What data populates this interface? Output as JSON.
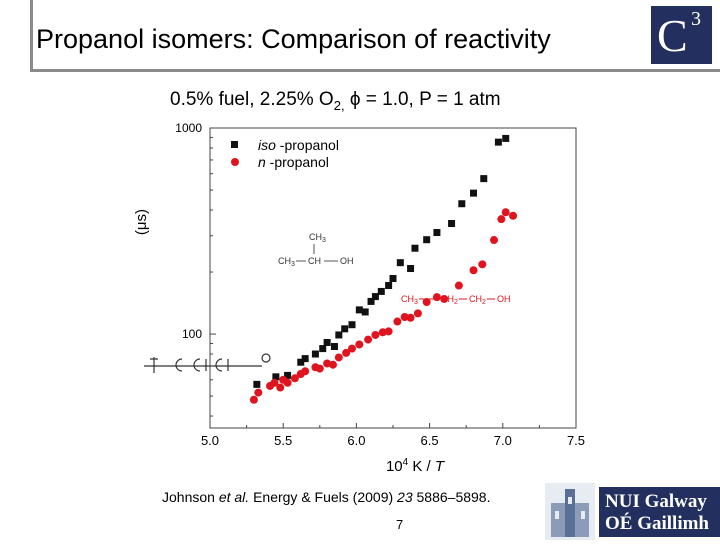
{
  "slide": {
    "title": "Propanol isomers: Comparison of reactivity",
    "subtitle_main": "0.5% fuel, 2.25% O",
    "subtitle_sub": "2,",
    "subtitle_rest": " ϕ = 1.0, P = 1 atm",
    "citation_authors": "Johnson ",
    "citation_etal": "et al.",
    "citation_journal": " Energy & Fuels (2009) ",
    "citation_volume": "23",
    "citation_pages": " 5886–5898.",
    "page_number": "7",
    "logo_c3_letter": "C",
    "logo_c3_sup": "3",
    "nuig_line1": "NUI Galway",
    "nuig_line2": "OÉ Gaillimh"
  },
  "chart_data": {
    "type": "scatter",
    "xlabel_prefix": "10",
    "xlabel_sup": "4",
    "xlabel_rest": " K / ",
    "xlabel_var": "T",
    "ylabel": "(μs)",
    "xlim": [
      5.0,
      7.5
    ],
    "ylim": [
      35,
      1000
    ],
    "yscale": "log",
    "x_ticks": [
      "5.0",
      "5.5",
      "6.0",
      "6.5",
      "7.0",
      "7.5"
    ],
    "y_ticks": [
      "1000",
      "100"
    ],
    "colors": {
      "iso": "#111111",
      "n": "#e0141e"
    },
    "series": [
      {
        "name": "iso-propanol",
        "legend_italic": "iso",
        "legend_rest": " -propanol",
        "marker": "square",
        "x": [
          5.32,
          5.45,
          5.53,
          5.62,
          5.65,
          5.72,
          5.77,
          5.8,
          5.85,
          5.88,
          5.92,
          5.97,
          6.02,
          6.06,
          6.1,
          6.13,
          6.17,
          6.22,
          6.25,
          6.3,
          6.37,
          6.4,
          6.48,
          6.55,
          6.65,
          6.72,
          6.8,
          6.87,
          6.97,
          7.02
        ],
        "y": [
          57,
          62,
          63,
          73,
          76,
          80,
          85,
          91,
          87,
          99,
          106,
          111,
          131,
          128,
          144,
          152,
          161,
          172,
          186,
          222,
          208,
          261,
          287,
          311,
          344,
          429,
          483,
          568,
          854,
          890
        ]
      },
      {
        "name": "n-propanol",
        "legend_italic": "n",
        "legend_rest": " -propanol",
        "marker": "circle",
        "x": [
          5.3,
          5.33,
          5.41,
          5.44,
          5.48,
          5.5,
          5.53,
          5.58,
          5.62,
          5.65,
          5.72,
          5.75,
          5.8,
          5.84,
          5.88,
          5.93,
          5.97,
          6.02,
          6.08,
          6.13,
          6.18,
          6.22,
          6.28,
          6.33,
          6.37,
          6.42,
          6.48,
          6.55,
          6.6,
          6.7,
          6.8,
          6.86,
          6.94,
          6.99,
          7.02,
          7.07
        ],
        "y": [
          48,
          52,
          56,
          58,
          55,
          60,
          58,
          61,
          64,
          66,
          69,
          68,
          72,
          71,
          77,
          81,
          85,
          89,
          94,
          99,
          102,
          103,
          115,
          121,
          120,
          126,
          143,
          151,
          148,
          172,
          204,
          218,
          286,
          361,
          390,
          375
        ]
      }
    ]
  }
}
